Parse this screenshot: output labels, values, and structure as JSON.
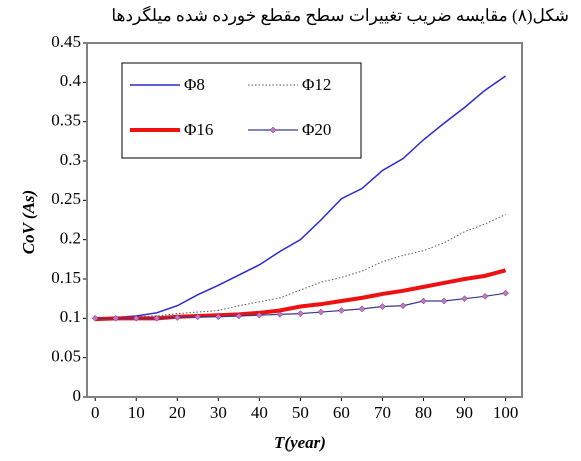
{
  "chart_data": {
    "type": "line",
    "title": "شکل(۸) مقایسه ضریب تغییرات سطح مقطع خورده شده میلگردها",
    "x_label": "T(year)",
    "y_label": "CoV (As)",
    "x": [
      0,
      5,
      10,
      15,
      20,
      25,
      30,
      35,
      40,
      45,
      50,
      55,
      60,
      65,
      70,
      75,
      80,
      85,
      90,
      95,
      100
    ],
    "series": [
      {
        "name": "Φ8",
        "color": "#2a2ad0",
        "line_width": 1.5,
        "dash": "solid",
        "marker": "none",
        "values": [
          0.1,
          0.101,
          0.103,
          0.107,
          0.116,
          0.13,
          0.142,
          0.155,
          0.168,
          0.185,
          0.2,
          0.225,
          0.252,
          0.265,
          0.288,
          0.303,
          0.327,
          0.348,
          0.368,
          0.39,
          0.408
        ]
      },
      {
        "name": "Φ12",
        "color": "#555555",
        "line_width": 1,
        "dash": "dotted",
        "marker": "none",
        "values": [
          0.1,
          0.1,
          0.102,
          0.103,
          0.106,
          0.108,
          0.11,
          0.116,
          0.121,
          0.126,
          0.136,
          0.146,
          0.152,
          0.16,
          0.172,
          0.18,
          0.186,
          0.196,
          0.21,
          0.22,
          0.232
        ]
      },
      {
        "name": "Φ16",
        "color": "#ee1111",
        "line_width": 4,
        "dash": "solid",
        "marker": "none",
        "values": [
          0.099,
          0.1,
          0.1,
          0.1,
          0.102,
          0.103,
          0.104,
          0.105,
          0.107,
          0.11,
          0.115,
          0.118,
          0.122,
          0.126,
          0.131,
          0.135,
          0.14,
          0.145,
          0.15,
          0.154,
          0.161
        ]
      },
      {
        "name": "Φ20",
        "color": "#3a3a8a",
        "line_width": 1.2,
        "dash": "solid",
        "marker": "diamond",
        "marker_color": "#d070c0",
        "values": [
          0.1,
          0.1,
          0.1,
          0.1,
          0.101,
          0.102,
          0.102,
          0.103,
          0.104,
          0.105,
          0.106,
          0.108,
          0.11,
          0.112,
          0.115,
          0.116,
          0.122,
          0.122,
          0.125,
          0.128,
          0.132
        ]
      }
    ],
    "xlim": [
      -2,
      104
    ],
    "xticks": [
      0,
      10,
      20,
      30,
      40,
      50,
      60,
      70,
      80,
      90,
      100
    ],
    "ylim": [
      0,
      0.45
    ],
    "yticks": [
      0,
      0.05,
      0.1,
      0.15,
      0.2,
      0.25,
      0.3,
      0.35,
      0.4,
      0.45
    ],
    "grid": false,
    "legend": "upper left"
  }
}
